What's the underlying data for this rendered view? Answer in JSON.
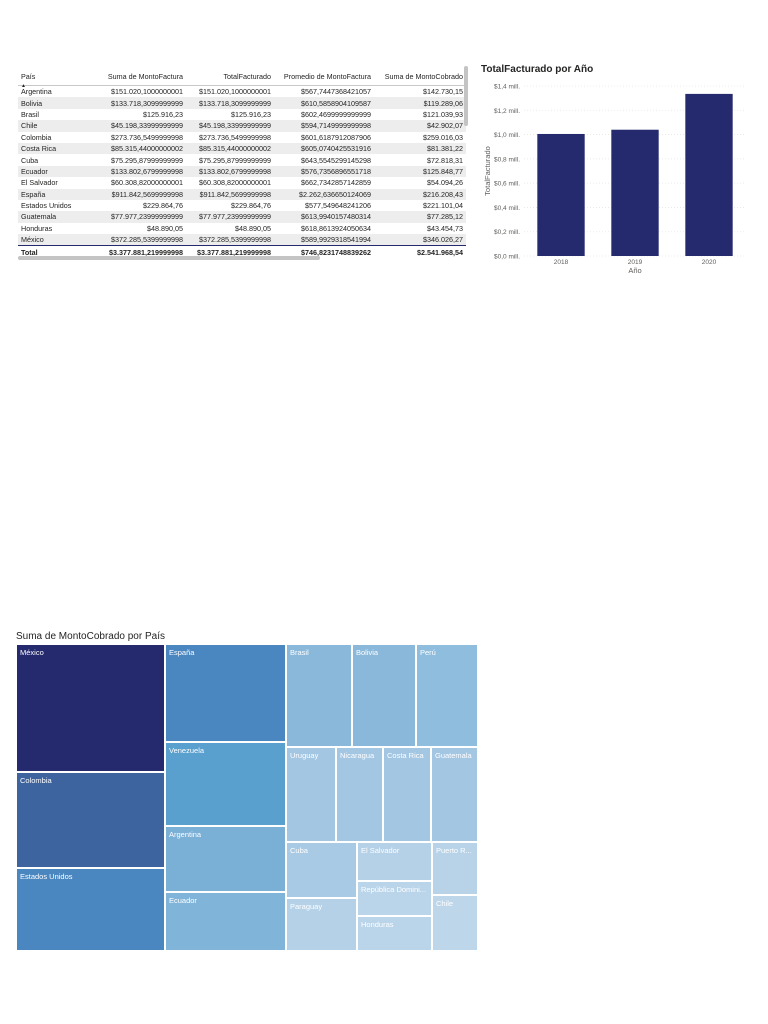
{
  "table": {
    "headers": [
      "País",
      "Suma de MontoFactura",
      "TotalFacturado",
      "Promedio de MontoFactura",
      "Suma de MontoCobrado"
    ],
    "sort_icon": "sort-up-icon",
    "rows": [
      [
        "Argentina",
        "$151.020,1000000001",
        "$151.020,1000000001",
        "$567,7447368421057",
        "$142.730,15"
      ],
      [
        "Bolivia",
        "$133.718,3099999999",
        "$133.718,3099999999",
        "$610,5858904109587",
        "$119.289,06"
      ],
      [
        "Brasil",
        "$125.916,23",
        "$125.916,23",
        "$602,4699999999999",
        "$121.039,93"
      ],
      [
        "Chile",
        "$45.198,33999999999",
        "$45.198,33999999999",
        "$594,7149999999998",
        "$42.902,07"
      ],
      [
        "Colombia",
        "$273.736,5499999998",
        "$273.736,5499999998",
        "$601,6187912087906",
        "$259.016,03"
      ],
      [
        "Costa Rica",
        "$85.315,44000000002",
        "$85.315,44000000002",
        "$605,0740425531916",
        "$81.381,22"
      ],
      [
        "Cuba",
        "$75.295,87999999999",
        "$75.295,87999999999",
        "$643,5545299145298",
        "$72.818,31"
      ],
      [
        "Ecuador",
        "$133.802,6799999998",
        "$133.802,6799999998",
        "$576,7356896551718",
        "$125.848,77"
      ],
      [
        "El Salvador",
        "$60.308,82000000001",
        "$60.308,82000000001",
        "$662,7342857142859",
        "$54.094,26"
      ],
      [
        "España",
        "$911.842,5699999998",
        "$911.842,5699999998",
        "$2.262,636650124069",
        "$216.208,43"
      ],
      [
        "Estados Unidos",
        "$229.864,76",
        "$229.864,76",
        "$577,549648241206",
        "$221.101,04"
      ],
      [
        "Guatemala",
        "$77.977,23999999999",
        "$77.977,23999999999",
        "$613,9940157480314",
        "$77.285,12"
      ],
      [
        "Honduras",
        "$48.890,05",
        "$48.890,05",
        "$618,8613924050634",
        "$43.454,73"
      ],
      [
        "México",
        "$372.285,5399999998",
        "$372.285,5399999998",
        "$589,9929318541994",
        "$346.026,27"
      ]
    ],
    "total": [
      "Total",
      "$3.377.881,219999998",
      "$3.377.881,219999998",
      "$746,8231748839262",
      "$2.541.968,54"
    ]
  },
  "bar_chart_visual": {
    "title": "TotalFacturado por Año"
  },
  "chart_data": [
    {
      "type": "bar",
      "title": "TotalFacturado por Año",
      "xlabel": "Año",
      "ylabel": "TotalFacturado",
      "categories": [
        "2018",
        "2019",
        "2020"
      ],
      "values": [
        1.005,
        1.04,
        1.335
      ],
      "value_unit": "mill.",
      "ylim": [
        0,
        1.4
      ],
      "yticks": [
        "$0,0 mill.",
        "$0,2 mill.",
        "$0,4 mill.",
        "$0,6 mill.",
        "$0,8 mill.",
        "$1,0 mill.",
        "$1,2 mill.",
        "$1,4 mill."
      ],
      "grid": true,
      "bar_color": "#252a6e"
    },
    {
      "type": "treemap",
      "title": "Suma de MontoCobrado por País",
      "labels": [
        "México",
        "Colombia",
        "Estados Unidos",
        "España",
        "Venezuela",
        "Argentina",
        "Ecuador",
        "Brasil",
        "Bolivia",
        "Perú",
        "Uruguay",
        "Nicaragua",
        "Costa Rica",
        "Guatemala",
        "Cuba",
        "El Salvador",
        "Puerto R...",
        "República Domini...",
        "Paraguay",
        "Honduras",
        "Chile"
      ]
    }
  ],
  "treemap_visual": {
    "title": "Suma de MontoCobrado por País"
  }
}
